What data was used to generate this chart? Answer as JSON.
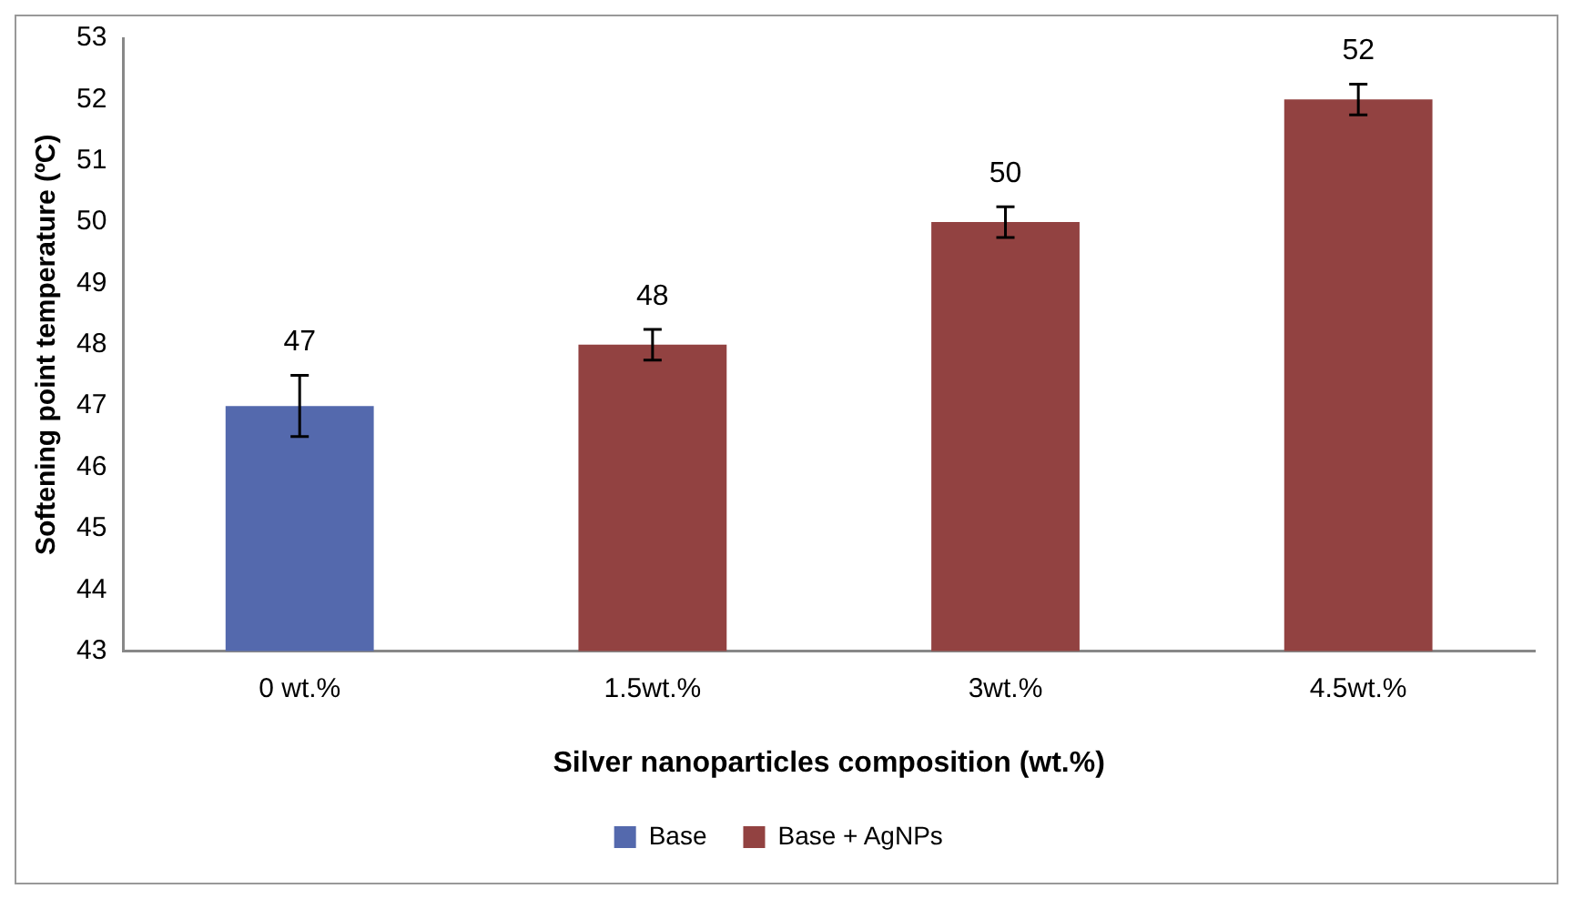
{
  "chart_data": {
    "type": "bar",
    "xlabel": "Silver nanoparticles composition (wt.%)",
    "ylabel": "Softening point temperature (ºC)",
    "categories": [
      "0 wt.%",
      "1.5wt.%",
      "3wt.%",
      "4.5wt.%"
    ],
    "series": [
      {
        "name": "Base",
        "color": "#5469ad",
        "values": [
          47,
          null,
          null,
          null
        ],
        "errors": [
          0.5,
          null,
          null,
          null
        ]
      },
      {
        "name": "Base + AgNPs",
        "color": "#924241",
        "values": [
          null,
          48,
          50,
          52
        ],
        "errors": [
          null,
          0.25,
          0.25,
          0.25
        ]
      }
    ],
    "ylim": [
      43,
      53
    ],
    "yticks": [
      43,
      44,
      45,
      46,
      47,
      48,
      49,
      50,
      51,
      52,
      53
    ],
    "grid": false,
    "legend": "bottom",
    "data_labels": true
  }
}
